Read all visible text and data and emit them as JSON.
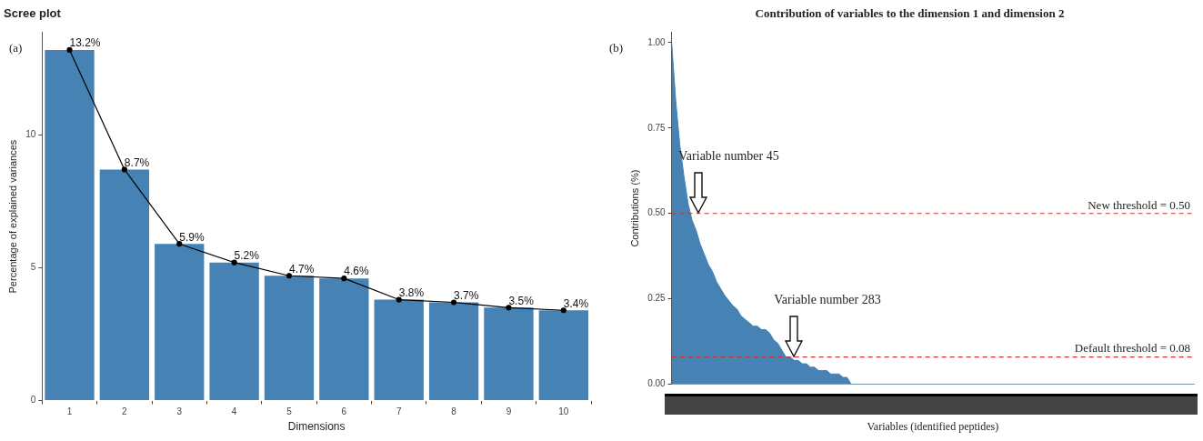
{
  "chart_data": [
    {
      "type": "bar",
      "title": "Scree plot",
      "xlabel": "Dimensions",
      "ylabel": "Percentage of explained variances",
      "annotations": [
        "(a)"
      ],
      "categories": [
        "1",
        "2",
        "3",
        "4",
        "5",
        "6",
        "7",
        "8",
        "9",
        "10"
      ],
      "series": [
        {
          "type": "bar",
          "color": "#4682b4",
          "values": [
            13.2,
            8.7,
            5.9,
            5.2,
            4.7,
            4.6,
            3.8,
            3.7,
            3.5,
            3.4
          ],
          "value_labels": [
            "13.2%",
            "8.7%",
            "5.9%",
            "5.2%",
            "4.7%",
            "4.6%",
            "3.8%",
            "3.7%",
            "3.5%",
            "3.4%"
          ]
        },
        {
          "type": "line",
          "color": "#000000",
          "values": [
            13.2,
            8.7,
            5.9,
            5.2,
            4.7,
            4.6,
            3.8,
            3.7,
            3.5,
            3.4
          ]
        }
      ],
      "marker": "circle",
      "ylim": [
        0,
        13.86
      ],
      "yticks": [
        0,
        5,
        10
      ],
      "grid": false,
      "legend": false
    },
    {
      "type": "area",
      "title": "Contribution of variables to the dimension 1 and dimension 2",
      "xlabel": "Variables (identified peptides)",
      "ylabel": "Contributions (%)",
      "annotations": [
        "(b)",
        "Variable number 45",
        "Variable number 283"
      ],
      "categories": [
        null,
        null,
        null,
        null,
        null,
        null,
        null,
        null,
        null,
        null,
        null,
        null,
        null,
        null,
        null,
        null,
        null,
        null,
        null,
        null,
        null,
        null,
        null,
        null,
        null,
        null,
        null,
        null,
        null,
        null,
        null,
        null,
        null,
        null,
        null,
        null,
        null,
        null,
        null,
        null,
        null,
        null,
        null,
        null,
        null,
        null,
        null,
        null,
        null,
        null,
        null,
        null,
        null,
        null,
        null,
        null,
        null,
        null,
        null,
        null,
        null,
        null,
        null,
        null,
        null,
        null,
        null,
        null,
        null,
        null,
        null,
        null,
        null,
        null,
        null,
        null,
        null,
        null,
        null,
        null,
        null,
        null,
        null,
        null,
        null,
        null,
        null,
        null,
        null,
        null,
        null,
        null,
        null,
        null,
        null,
        null,
        null,
        null,
        null,
        null,
        null,
        null,
        null,
        null,
        null,
        null,
        null,
        null,
        null,
        null,
        null,
        null,
        null,
        null,
        null,
        null,
        null,
        null,
        null,
        null,
        null,
        null,
        null,
        null,
        null,
        null,
        null,
        null,
        null
      ],
      "series": [
        {
          "color": "#4682b4",
          "values": [
            1.0,
            0.83,
            0.7,
            0.61,
            0.53,
            0.48,
            0.45,
            0.41,
            0.38,
            0.35,
            0.33,
            0.3,
            0.28,
            0.26,
            0.245,
            0.23,
            0.22,
            0.2,
            0.19,
            0.18,
            0.17,
            0.17,
            0.16,
            0.16,
            0.15,
            0.13,
            0.12,
            0.1,
            0.08,
            0.08,
            0.07,
            0.07,
            0.06,
            0.06,
            0.05,
            0.05,
            0.04,
            0.04,
            0.04,
            0.03,
            0.03,
            0.03,
            0.02,
            0.02,
            0,
            0,
            0,
            0,
            0,
            0,
            0,
            0,
            0,
            0,
            0,
            0,
            0,
            0,
            0,
            0,
            0,
            0,
            0,
            0,
            0,
            0,
            0,
            0,
            0,
            0,
            0,
            0,
            0,
            0,
            0,
            0,
            0,
            0,
            0,
            0,
            0,
            0,
            0,
            0,
            0,
            0,
            0,
            0,
            0,
            0,
            0,
            0,
            0,
            0,
            0,
            0,
            0,
            0,
            0,
            0,
            0,
            0,
            0,
            0,
            0,
            0,
            0,
            0,
            0,
            0,
            0,
            0,
            0,
            0,
            0,
            0,
            0,
            0,
            0,
            0,
            0,
            0,
            0,
            0,
            0,
            0,
            0,
            0,
            0
          ]
        }
      ],
      "ylim": [
        0,
        1.03
      ],
      "yticks": [
        {
          "value": 0,
          "label": "0.00"
        },
        {
          "value": 0.25,
          "label": "0.25"
        },
        {
          "value": 0.5,
          "label": "0.50"
        },
        {
          "value": 0.75,
          "label": "0.75"
        },
        {
          "value": 1,
          "label": "1.00"
        }
      ],
      "tick_labels": "y",
      "grid": false,
      "legend": false,
      "ref_lines": [
        {
          "axis": "y",
          "value": 0.5,
          "label": "New threshold = 0.50",
          "color": "#cc3333",
          "line_style": "dashed"
        },
        {
          "axis": "y",
          "value": 0.08,
          "label": "Default threshold = 0.08",
          "color": "#cc3333",
          "line_style": "dashed"
        }
      ]
    }
  ]
}
